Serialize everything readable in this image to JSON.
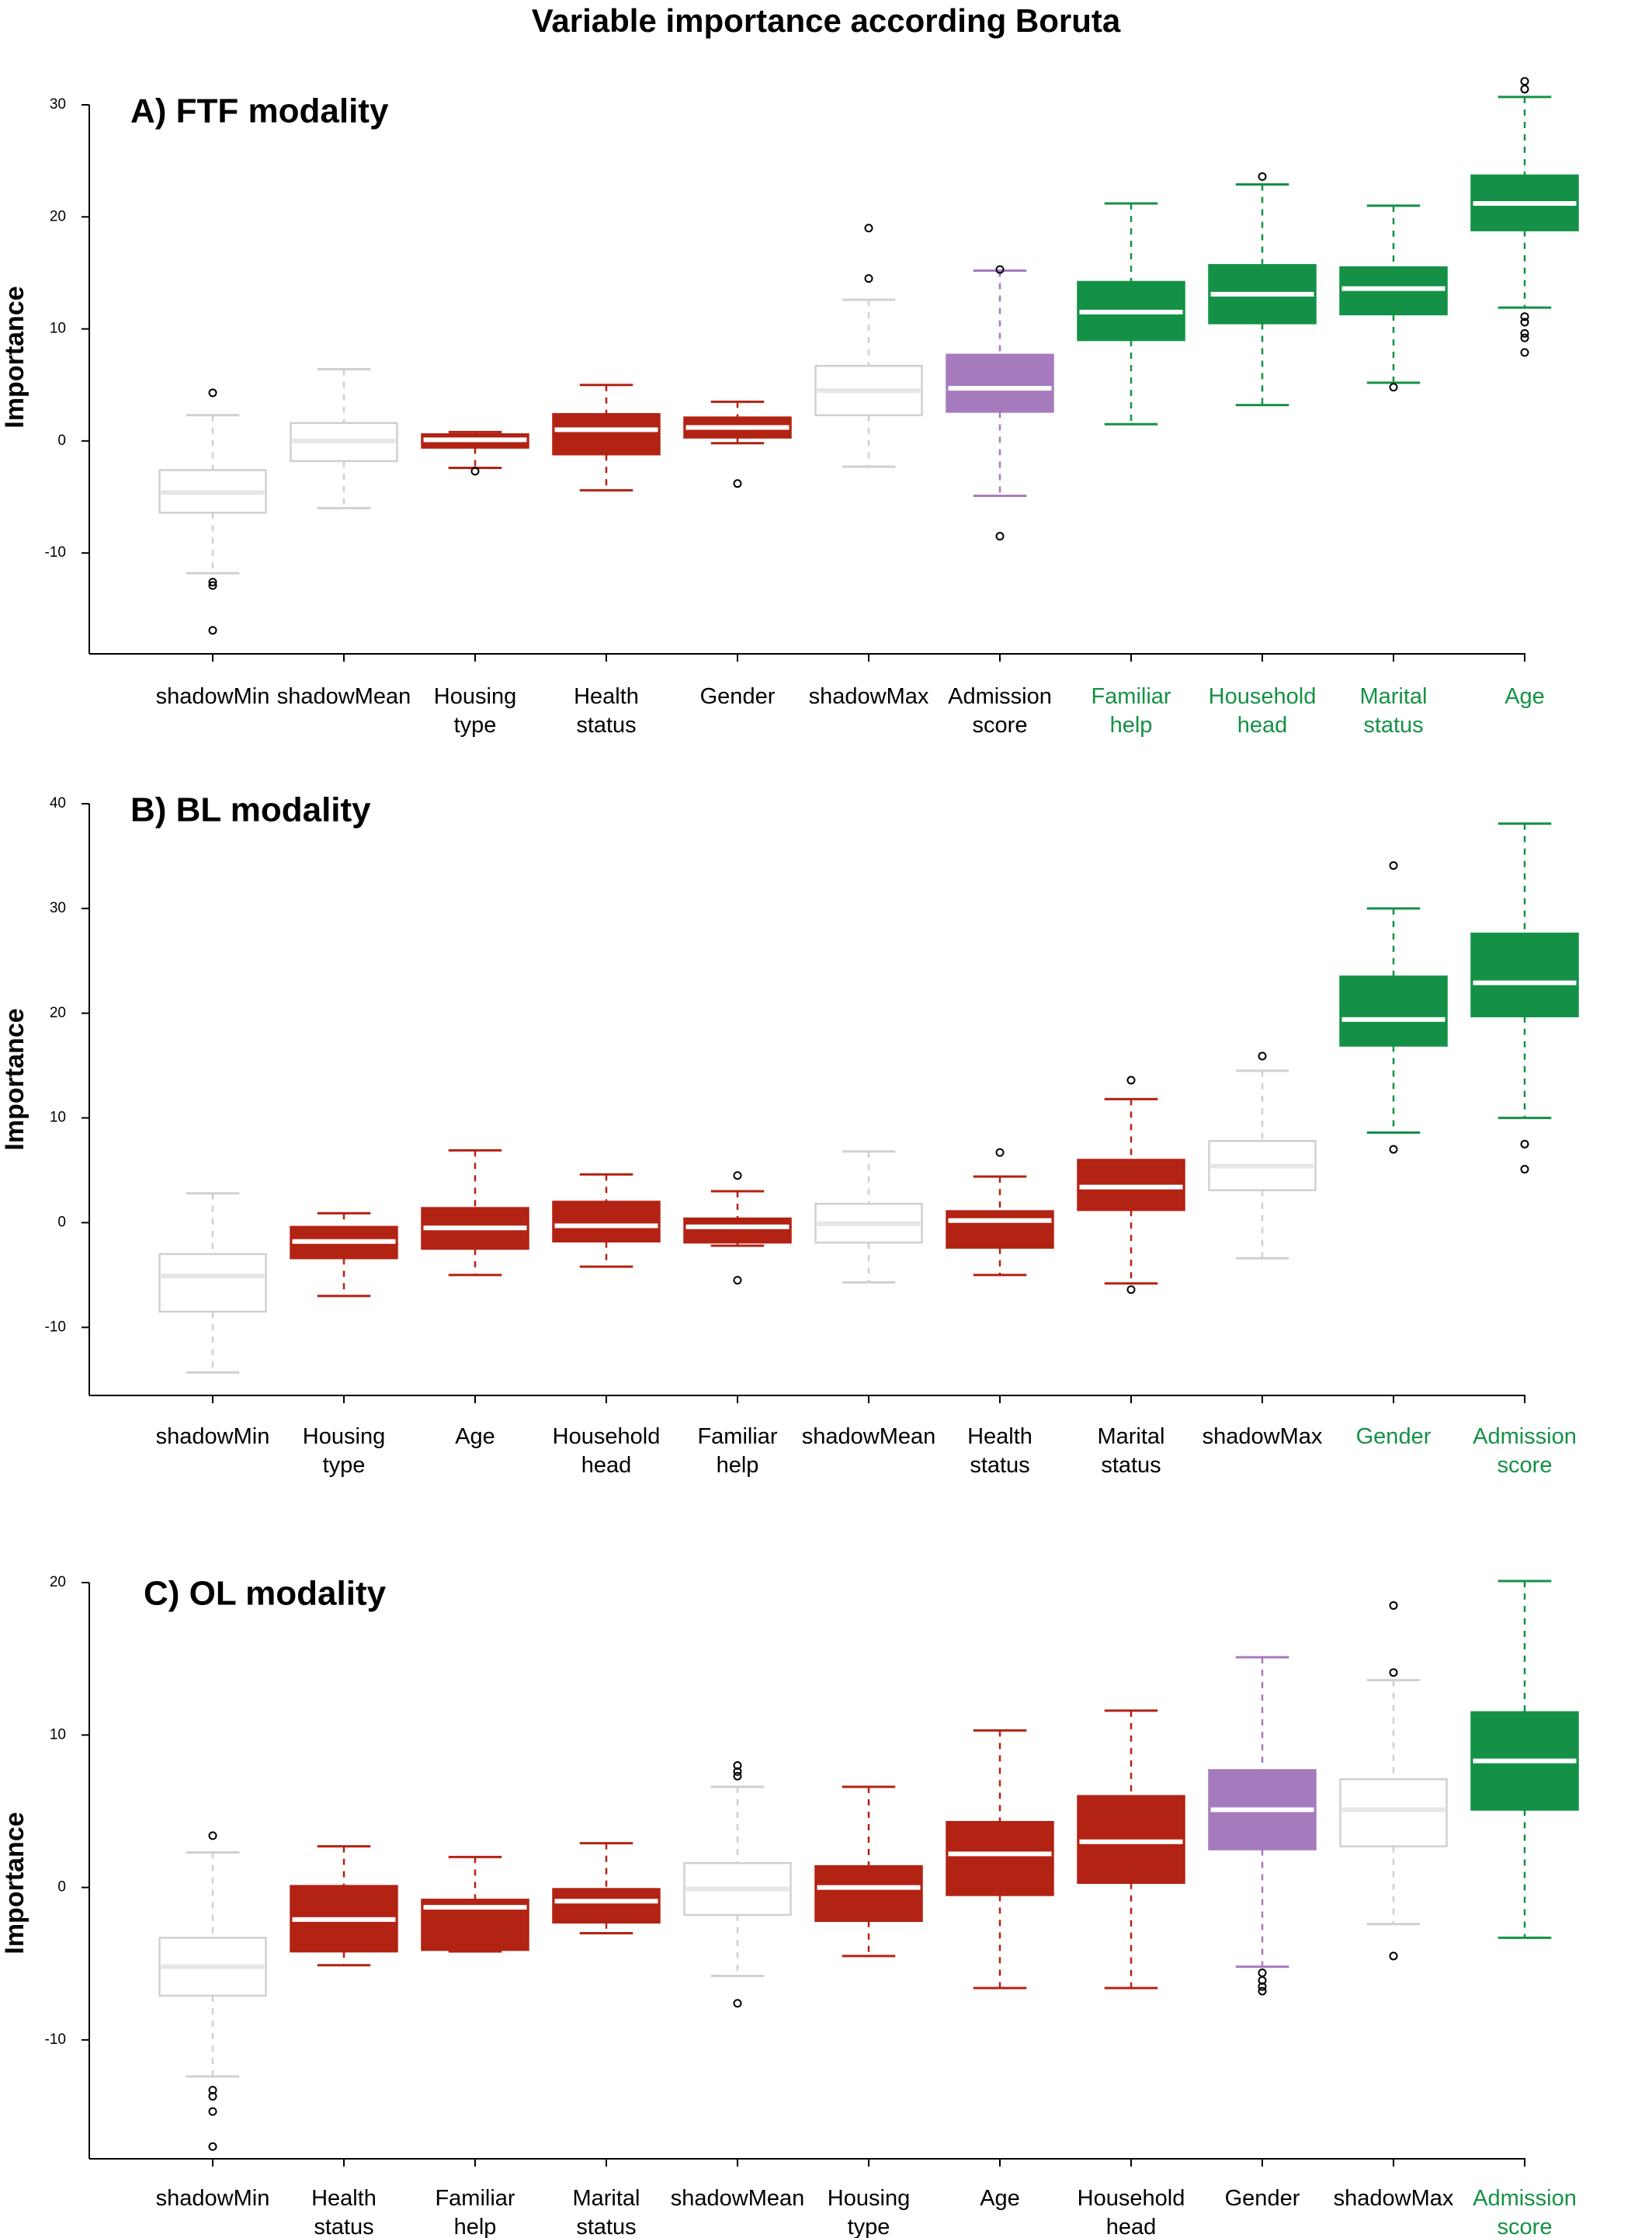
{
  "title": "Variable importance according Boruta",
  "colors": {
    "rejected": "#b22314",
    "confirmed": "#149146",
    "tentative": "#a67bbe",
    "shadow": "#ffffff",
    "shadow_median": "#e6e6e6",
    "shadow_whisker": "#d0d0d0",
    "confirmed_label": "#149146"
  },
  "chart_data": [
    {
      "type": "box",
      "title": "A) FTF modality",
      "ylabel": "Importance",
      "ylim": [
        -19,
        30
      ],
      "yticks": [
        -10,
        0,
        10,
        20,
        30
      ],
      "categories": [
        {
          "label": [
            "shadowMin"
          ],
          "status": "shadow",
          "lw": -11.8,
          "q1": -6.4,
          "med": -4.6,
          "q3": -2.6,
          "uw": 2.3,
          "out": [
            4.3,
            -12.6,
            -12.9,
            -16.9
          ]
        },
        {
          "label": [
            "shadowMean"
          ],
          "status": "shadow",
          "lw": -6.0,
          "q1": -1.8,
          "med": 0.0,
          "q3": 1.6,
          "uw": 6.4,
          "out": []
        },
        {
          "label": [
            "Housing",
            "type"
          ],
          "status": "rejected",
          "lw": -2.4,
          "q1": -0.6,
          "med": 0.1,
          "q3": 0.6,
          "uw": 0.8,
          "out": [
            -2.7
          ]
        },
        {
          "label": [
            "Health",
            "status"
          ],
          "status": "rejected",
          "lw": -4.4,
          "q1": -1.2,
          "med": 1.0,
          "q3": 2.4,
          "uw": 5.0,
          "out": []
        },
        {
          "label": [
            "Gender"
          ],
          "status": "rejected",
          "lw": -0.2,
          "q1": 0.3,
          "med": 1.2,
          "q3": 2.1,
          "uw": 3.5,
          "out": [
            -3.8
          ]
        },
        {
          "label": [
            "shadowMax"
          ],
          "status": "shadow",
          "lw": -2.3,
          "q1": 2.3,
          "med": 4.5,
          "q3": 6.7,
          "uw": 12.6,
          "out": [
            14.5,
            19.0
          ]
        },
        {
          "label": [
            "Admission",
            "score"
          ],
          "status": "tentative",
          "lw": -4.9,
          "q1": 2.6,
          "med": 4.7,
          "q3": 7.7,
          "uw": 15.2,
          "out": [
            15.3,
            -8.5
          ]
        },
        {
          "label": [
            "Familiar",
            "help"
          ],
          "status": "confirmed",
          "lw": 1.5,
          "q1": 9.0,
          "med": 11.5,
          "q3": 14.2,
          "uw": 21.2,
          "out": []
        },
        {
          "label": [
            "Household",
            "head"
          ],
          "status": "confirmed",
          "lw": 3.2,
          "q1": 10.5,
          "med": 13.1,
          "q3": 15.7,
          "uw": 22.9,
          "out": [
            23.6
          ]
        },
        {
          "label": [
            "Marital",
            "status"
          ],
          "status": "confirmed",
          "lw": 5.2,
          "q1": 11.3,
          "med": 13.6,
          "q3": 15.5,
          "uw": 21.0,
          "out": [
            4.8
          ]
        },
        {
          "label": [
            "Age"
          ],
          "status": "confirmed",
          "lw": 11.9,
          "q1": 18.8,
          "med": 21.2,
          "q3": 23.7,
          "uw": 30.7,
          "out": [
            31.4,
            32.1,
            11.1,
            10.6,
            9.6,
            9.2,
            7.9
          ]
        }
      ]
    },
    {
      "type": "box",
      "title": "B) BL modality",
      "ylabel": "Importance",
      "ylim": [
        -16.5,
        40
      ],
      "yticks": [
        -10,
        0,
        10,
        20,
        30,
        40
      ],
      "categories": [
        {
          "label": [
            "shadowMin"
          ],
          "status": "shadow",
          "lw": -14.3,
          "q1": -8.5,
          "med": -5.1,
          "q3": -3.0,
          "uw": 2.8,
          "out": []
        },
        {
          "label": [
            "Housing",
            "type"
          ],
          "status": "rejected",
          "lw": -7.0,
          "q1": -3.4,
          "med": -1.8,
          "q3": -0.4,
          "uw": 0.9,
          "out": []
        },
        {
          "label": [
            "Age"
          ],
          "status": "rejected",
          "lw": -5.0,
          "q1": -2.5,
          "med": -0.5,
          "q3": 1.4,
          "uw": 6.9,
          "out": []
        },
        {
          "label": [
            "Household",
            "head"
          ],
          "status": "rejected",
          "lw": -4.2,
          "q1": -1.8,
          "med": -0.3,
          "q3": 2.0,
          "uw": 4.6,
          "out": []
        },
        {
          "label": [
            "Familiar",
            "help"
          ],
          "status": "rejected",
          "lw": -2.2,
          "q1": -1.9,
          "med": -0.4,
          "q3": 0.4,
          "uw": 3.0,
          "out": [
            4.5,
            -5.5
          ]
        },
        {
          "label": [
            "shadowMean"
          ],
          "status": "shadow",
          "lw": -5.7,
          "q1": -1.9,
          "med": -0.1,
          "q3": 1.8,
          "uw": 6.8,
          "out": []
        },
        {
          "label": [
            "Health",
            "status"
          ],
          "status": "rejected",
          "lw": -5.0,
          "q1": -2.4,
          "med": 0.2,
          "q3": 1.1,
          "uw": 4.4,
          "out": [
            6.7
          ]
        },
        {
          "label": [
            "Marital",
            "status"
          ],
          "status": "rejected",
          "lw": -5.8,
          "q1": 1.2,
          "med": 3.4,
          "q3": 6.0,
          "uw": 11.8,
          "out": [
            13.6,
            -6.4
          ]
        },
        {
          "label": [
            "shadowMax"
          ],
          "status": "shadow",
          "lw": -3.4,
          "q1": 3.1,
          "med": 5.4,
          "q3": 7.8,
          "uw": 14.5,
          "out": [
            15.9
          ]
        },
        {
          "label": [
            "Gender"
          ],
          "status": "confirmed",
          "lw": 8.6,
          "q1": 16.9,
          "med": 19.4,
          "q3": 23.5,
          "uw": 30.0,
          "out": [
            34.1,
            7.0
          ]
        },
        {
          "label": [
            "Admission",
            "score"
          ],
          "status": "confirmed",
          "lw": 10.0,
          "q1": 19.7,
          "med": 22.9,
          "q3": 27.6,
          "uw": 38.1,
          "out": [
            7.5,
            5.1
          ]
        }
      ]
    },
    {
      "type": "box",
      "title": "C) OL modality",
      "ylabel": "Importance",
      "ylim": [
        -17.8,
        20
      ],
      "yticks": [
        -10,
        0,
        10,
        20
      ],
      "categories": [
        {
          "label": [
            "shadowMin"
          ],
          "status": "shadow",
          "lw": -12.4,
          "q1": -7.1,
          "med": -5.2,
          "q3": -3.3,
          "uw": 2.3,
          "out": [
            3.4,
            -13.3,
            -13.7,
            -14.7,
            -17.0
          ]
        },
        {
          "label": [
            "Health",
            "status"
          ],
          "status": "rejected",
          "lw": -5.1,
          "q1": -4.2,
          "med": -2.1,
          "q3": 0.1,
          "uw": 2.7,
          "out": []
        },
        {
          "label": [
            "Familiar",
            "help"
          ],
          "status": "rejected",
          "lw": -4.2,
          "q1": -4.1,
          "med": -1.3,
          "q3": -0.8,
          "uw": 2.0,
          "out": []
        },
        {
          "label": [
            "Marital",
            "status"
          ],
          "status": "rejected",
          "lw": -3.0,
          "q1": -2.3,
          "med": -0.9,
          "q3": -0.1,
          "uw": 2.9,
          "out": []
        },
        {
          "label": [
            "shadowMean"
          ],
          "status": "shadow",
          "lw": -5.8,
          "q1": -1.8,
          "med": -0.1,
          "q3": 1.6,
          "uw": 6.6,
          "out": [
            7.3,
            7.6,
            8.0,
            -7.6
          ]
        },
        {
          "label": [
            "Housing",
            "type"
          ],
          "status": "rejected",
          "lw": -4.5,
          "q1": -2.2,
          "med": 0.0,
          "q3": 1.4,
          "uw": 6.6,
          "out": []
        },
        {
          "label": [
            "Age"
          ],
          "status": "rejected",
          "lw": -6.6,
          "q1": -0.5,
          "med": 2.2,
          "q3": 4.3,
          "uw": 10.3,
          "out": []
        },
        {
          "label": [
            "Household",
            "head"
          ],
          "status": "rejected",
          "lw": -6.6,
          "q1": 0.3,
          "med": 3.0,
          "q3": 6.0,
          "uw": 11.6,
          "out": []
        },
        {
          "label": [
            "Gender"
          ],
          "status": "tentative",
          "lw": -5.2,
          "q1": 2.5,
          "med": 5.1,
          "q3": 7.7,
          "uw": 15.1,
          "out": [
            -5.6,
            -6.1,
            -6.5,
            -6.8
          ]
        },
        {
          "label": [
            "shadowMax"
          ],
          "status": "shadow",
          "lw": -2.4,
          "q1": 2.7,
          "med": 5.1,
          "q3": 7.1,
          "uw": 13.6,
          "out": [
            14.1,
            18.5,
            -4.5
          ]
        },
        {
          "label": [
            "Admission",
            "score"
          ],
          "status": "confirmed",
          "lw": -3.3,
          "q1": 5.1,
          "med": 8.3,
          "q3": 11.5,
          "uw": 20.1,
          "out": []
        }
      ]
    }
  ]
}
